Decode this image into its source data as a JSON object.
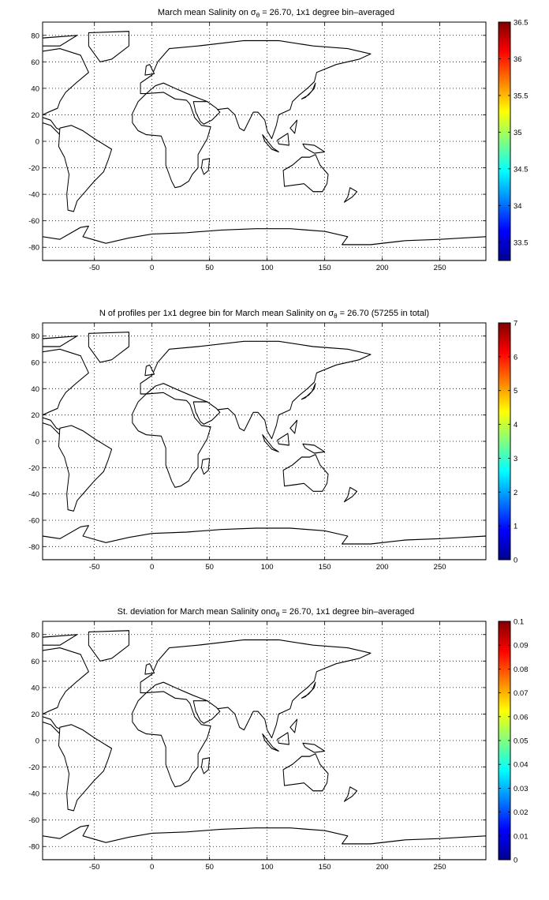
{
  "figure": {
    "background": "#ffffff",
    "map_land_color": "#ffffff",
    "coast_color": "#000000",
    "grid_style": "dotted",
    "colormap": "jet",
    "colormap_stops": [
      "#00008f",
      "#0000ff",
      "#00ffff",
      "#ffff00",
      "#ff0000",
      "#800000"
    ]
  },
  "chart_data": [
    {
      "type": "heatmap",
      "title_prefix": "March mean Salinity on ",
      "title_symbol": "σ",
      "title_subscript": "θ",
      "title_suffix": " = 26.70, 1x1 degree bin–averaged",
      "x_ticks": [
        -50,
        0,
        50,
        100,
        150,
        200,
        250
      ],
      "y_ticks": [
        80,
        60,
        40,
        20,
        0,
        -20,
        -40,
        -60,
        -80
      ],
      "xlim": [
        -95,
        290
      ],
      "ylim": [
        -90,
        90
      ],
      "grid": true,
      "colorbar_ticks": [
        36.5,
        36,
        35.5,
        35,
        34.5,
        34,
        33.5
      ],
      "colorbar_range": [
        33.25,
        36.5
      ],
      "colorbar_position": "right"
    },
    {
      "type": "heatmap",
      "title_prefix": "N of profiles per 1x1 degree bin for March mean Salinity on ",
      "title_symbol": "σ",
      "title_subscript": "θ",
      "title_suffix": " = 26.70 (57255 in total)",
      "x_ticks": [
        -50,
        0,
        50,
        100,
        150,
        200,
        250
      ],
      "y_ticks": [
        80,
        60,
        40,
        20,
        0,
        -20,
        -40,
        -60,
        -80
      ],
      "xlim": [
        -95,
        290
      ],
      "ylim": [
        -90,
        90
      ],
      "grid": true,
      "colorbar_ticks": [
        7,
        6,
        5,
        4,
        3,
        2,
        1,
        0
      ],
      "colorbar_range": [
        0,
        7
      ],
      "colorbar_position": "right"
    },
    {
      "type": "heatmap",
      "title_prefix": "St. deviation for March mean Salinity on",
      "title_symbol": "σ",
      "title_subscript": "θ",
      "title_suffix": " = 26.70, 1x1 degree bin–averaged",
      "x_ticks": [
        -50,
        0,
        50,
        100,
        150,
        200,
        250
      ],
      "y_ticks": [
        80,
        60,
        40,
        20,
        0,
        -20,
        -40,
        -60,
        -80
      ],
      "xlim": [
        -95,
        290
      ],
      "ylim": [
        -90,
        90
      ],
      "grid": true,
      "colorbar_ticks": [
        0.1,
        0.09,
        0.08,
        0.07,
        0.06,
        0.05,
        0.04,
        0.03,
        0.02,
        0.01,
        0
      ],
      "colorbar_range": [
        0,
        0.1
      ],
      "colorbar_position": "right"
    }
  ]
}
